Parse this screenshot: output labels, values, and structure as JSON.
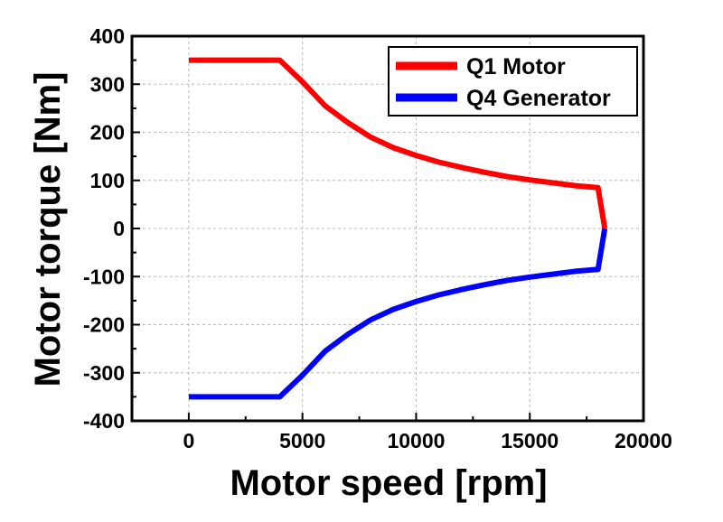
{
  "chart_data": {
    "type": "line",
    "xlabel": "Motor speed [rpm]",
    "ylabel": "Motor torque [Nm]",
    "xlim": [
      -2500,
      20000
    ],
    "ylim": [
      -400,
      400
    ],
    "xticks": [
      0,
      5000,
      10000,
      15000,
      20000
    ],
    "yticks": [
      400,
      300,
      200,
      100,
      0,
      -100,
      -200,
      -300,
      -400
    ],
    "grid": true,
    "legend_position": "top-right",
    "series": [
      {
        "name": "Q1 Motor",
        "color": "#ff0000",
        "x": [
          0,
          4000,
          5000,
          6000,
          7000,
          8000,
          9000,
          10000,
          11000,
          12000,
          13000,
          14000,
          15000,
          16000,
          17000,
          18000,
          18300
        ],
        "y": [
          350,
          350,
          305,
          255,
          220,
          190,
          168,
          152,
          138,
          127,
          117,
          108,
          101,
          95,
          89,
          85,
          0
        ]
      },
      {
        "name": "Q4 Generator",
        "color": "#0000ff",
        "x": [
          0,
          4000,
          5000,
          6000,
          7000,
          8000,
          9000,
          10000,
          11000,
          12000,
          13000,
          14000,
          15000,
          16000,
          17000,
          18000,
          18300
        ],
        "y": [
          -350,
          -350,
          -305,
          -255,
          -220,
          -190,
          -168,
          -152,
          -138,
          -127,
          -117,
          -108,
          -101,
          -95,
          -89,
          -85,
          0
        ]
      }
    ]
  }
}
